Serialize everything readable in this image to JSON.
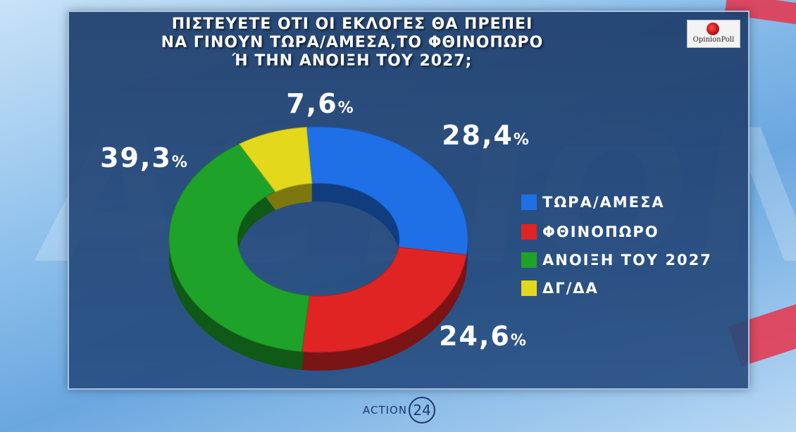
{
  "title_lines": [
    "ΠΙΣΤΕΥΕΤΕ ΟΤΙ ΟΙ ΕΚΛΟΓΕΣ ΘΑ ΠΡΕΠΕΙ",
    "ΝΑ ΓΙΝΟΥΝ ΤΩΡΑ/ΑΜΕΣΑ,ΤΟ ΦΘΙΝΟΠΩΡΟ",
    "Ή ΤΗΝ ΑΝΟΙΞΗ ΤΟΥ 2027;"
  ],
  "brand_logo": {
    "text": "OpinionPoll"
  },
  "footer": {
    "channel_text": "ACTION",
    "channel_num": "24"
  },
  "chart_data": {
    "type": "pie",
    "title": "ΠΙΣΤΕΥΕΤΕ ΟΤΙ ΟΙ ΕΚΛΟΓΕΣ ΘΑ ΠΡΕΠΕΙ ΝΑ ΓΙΝΟΥΝ ΤΩΡΑ/ΑΜΕΣΑ,ΤΟ ΦΘΙΝΟΠΩΡΟ Ή ΤΗΝ ΑΝΟΙΞΗ ΤΟΥ 2027;",
    "style": "donut",
    "unit": "%",
    "slices": [
      {
        "label": "ΤΩΡΑ/ΑΜΕΣΑ",
        "value": 28.4,
        "value_text": "28,4",
        "color": "#1f6fe6"
      },
      {
        "label": "ΦΘΙΝΟΠΩΡΟ",
        "value": 24.6,
        "value_text": "24,6",
        "color": "#e02424"
      },
      {
        "label": "ΑΝΟΙΞΗ ΤΟΥ 2027",
        "value": 39.3,
        "value_text": "39,3",
        "color": "#1fa22a"
      },
      {
        "label": "ΔΓ/ΔΑ",
        "value": 7.6,
        "value_text": "7,6",
        "color": "#e3d81c"
      }
    ],
    "legend_position": "right"
  }
}
